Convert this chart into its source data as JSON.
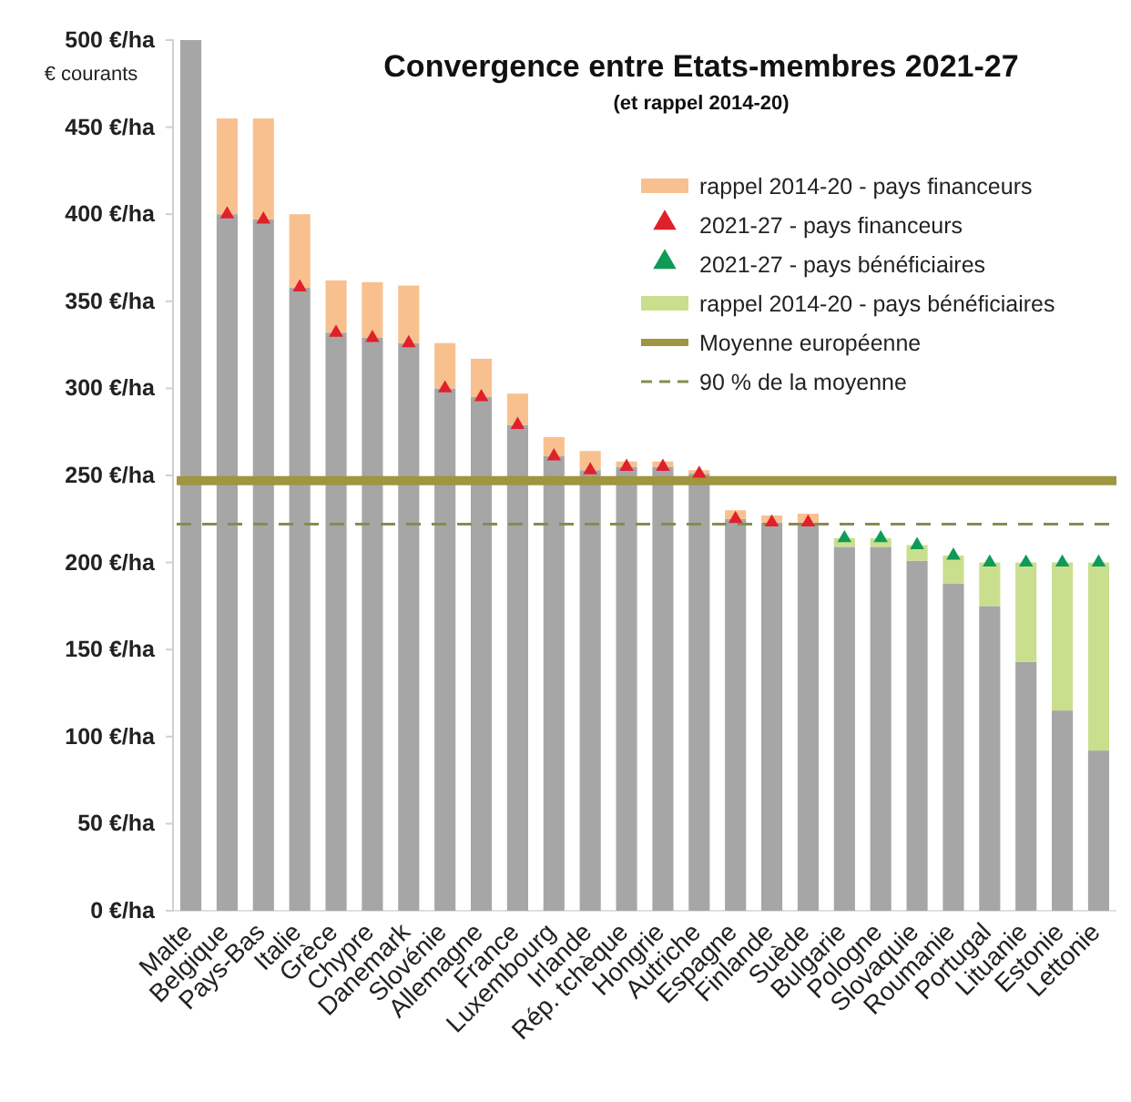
{
  "chart_data": {
    "type": "bar",
    "title": "Convergence entre Etats-membres 2021-27",
    "subtitle": "(et rappel 2014-20)",
    "ylabel": "€ courants",
    "categories": [
      "Malte",
      "Belgique",
      "Pays-Bas",
      "Italie",
      "Grèce",
      "Chypre",
      "Danemark",
      "Slovénie",
      "Allemagne",
      "France",
      "Luxembourg",
      "Irlande",
      "Rép. tchèque",
      "Hongrie",
      "Autriche",
      "Espagne",
      "Finlande",
      "Suède",
      "Bulgarie",
      "Pologne",
      "Slovaquie",
      "Roumanie",
      "Portugal",
      "Lituanie",
      "Estonie",
      "Lettonie"
    ],
    "series": [
      {
        "color": "#a6a6a6",
        "values": [
          500,
          400,
          397,
          358,
          332,
          329,
          326,
          300,
          295,
          279,
          261,
          253,
          255,
          255,
          251,
          225,
          223,
          223,
          209,
          209,
          201,
          188,
          175,
          143,
          115,
          92
        ]
      },
      {
        "type": "bar",
        "name": "rappel 2014-20 - pays financeurs",
        "color": "#f9c08f",
        "values": [
          null,
          55,
          58,
          42,
          30,
          32,
          33,
          26,
          22,
          18,
          11,
          11,
          3,
          3,
          2,
          5,
          4,
          5,
          null,
          null,
          null,
          null,
          null,
          null,
          null,
          null
        ]
      },
      {
        "type": "scatter",
        "name": "2021-27 - pays financeurs",
        "color": "#e0202a",
        "marker": "triangle",
        "values": [
          null,
          400,
          397,
          358,
          332,
          329,
          326,
          300,
          295,
          279,
          261,
          253,
          255,
          255,
          251,
          225,
          223,
          223,
          null,
          null,
          null,
          null,
          null,
          null,
          null,
          null
        ]
      },
      {
        "type": "scatter",
        "name": "2021-27 - pays bénéficiaires",
        "color": "#0f9a55",
        "marker": "triangle",
        "values": [
          null,
          null,
          null,
          null,
          null,
          null,
          null,
          null,
          null,
          null,
          null,
          null,
          null,
          null,
          null,
          null,
          null,
          null,
          214,
          214,
          210,
          204,
          200,
          200,
          200,
          200
        ]
      },
      {
        "type": "bar",
        "name": "rappel 2014-20 - pays bénéficiaires",
        "color": "#c9df8e",
        "values": [
          null,
          null,
          null,
          null,
          null,
          null,
          null,
          null,
          null,
          null,
          null,
          null,
          null,
          null,
          null,
          null,
          null,
          null,
          5,
          5,
          9,
          16,
          25,
          57,
          85,
          108
        ]
      }
    ],
    "ylim": [
      0,
      500
    ],
    "yticks": [
      {
        "value": 0,
        "label": "0 €/ha"
      },
      {
        "value": 50,
        "label": "50 €/ha"
      },
      {
        "value": 100,
        "label": "100 €/ha"
      },
      {
        "value": 150,
        "label": "150 €/ha"
      },
      {
        "value": 200,
        "label": "200 €/ha"
      },
      {
        "value": 250,
        "label": "250 €/ha"
      },
      {
        "value": 300,
        "label": "300 €/ha"
      },
      {
        "value": 350,
        "label": "350 €/ha"
      },
      {
        "value": 400,
        "label": "400 €/ha"
      },
      {
        "value": 450,
        "label": "450 €/ha"
      },
      {
        "value": 500,
        "label": "500 €/ha"
      }
    ],
    "ref_lines": [
      {
        "axis": "y",
        "value": 247,
        "label": "Moyenne européenne",
        "color": "#a09540",
        "line_style": "solid"
      },
      {
        "axis": "y",
        "value": 222,
        "label": "90 % de la moyenne",
        "color": "#8a8a50",
        "line_style": "dashed"
      }
    ],
    "stacked": true,
    "legend": "top right",
    "grid": false
  }
}
